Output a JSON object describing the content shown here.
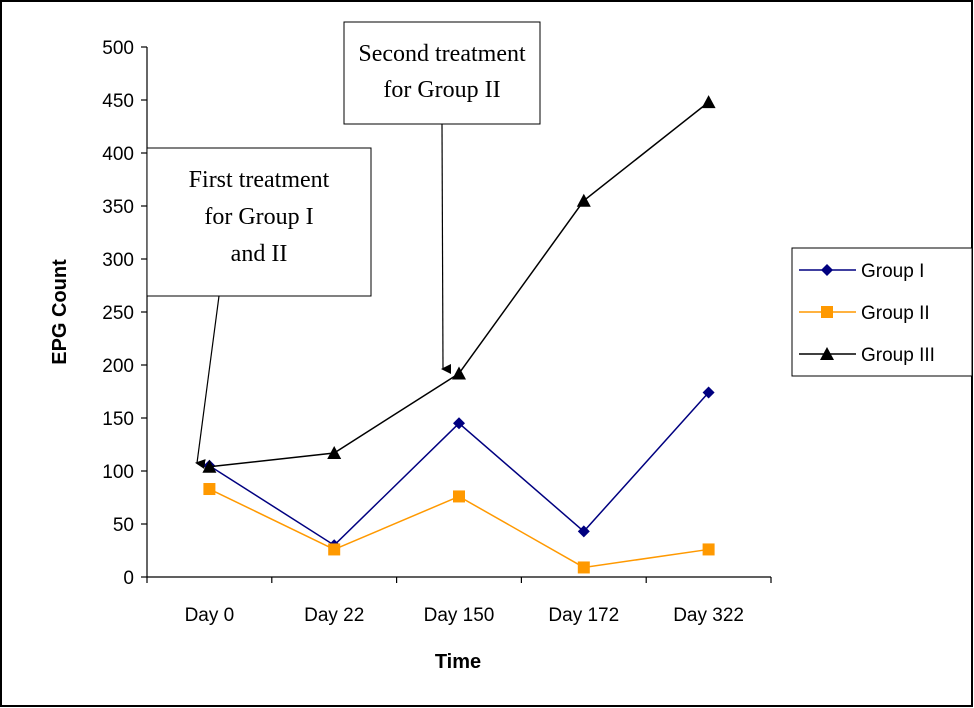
{
  "chart_data": {
    "type": "line",
    "xlabel": "Time",
    "ylabel": "EPG Count",
    "categories": [
      "Day 0",
      "Day 22",
      "Day 150",
      "Day 172",
      "Day 322"
    ],
    "ylim": [
      0,
      500
    ],
    "yticks": [
      0,
      50,
      100,
      150,
      200,
      250,
      300,
      350,
      400,
      450,
      500
    ],
    "grid": false,
    "legend_position": "right",
    "series": [
      {
        "name": "Group I",
        "marker": "diamond",
        "color": "#000080",
        "values": [
          105,
          30,
          145,
          43,
          174
        ]
      },
      {
        "name": "Group II",
        "marker": "square",
        "color": "#FF9900",
        "values": [
          83,
          26,
          76,
          9,
          26
        ]
      },
      {
        "name": "Group III",
        "marker": "triangle",
        "color": "#000000",
        "values": [
          104,
          117,
          192,
          355,
          448
        ]
      }
    ],
    "annotations": [
      {
        "lines": [
          "First treatment",
          "for Group I",
          "and II"
        ],
        "points_to": {
          "category": "Day 0",
          "value": 104
        }
      },
      {
        "lines": [
          "Second treatment",
          "for Group II"
        ],
        "points_to": {
          "category": "Day 150",
          "value": 192
        }
      }
    ]
  }
}
